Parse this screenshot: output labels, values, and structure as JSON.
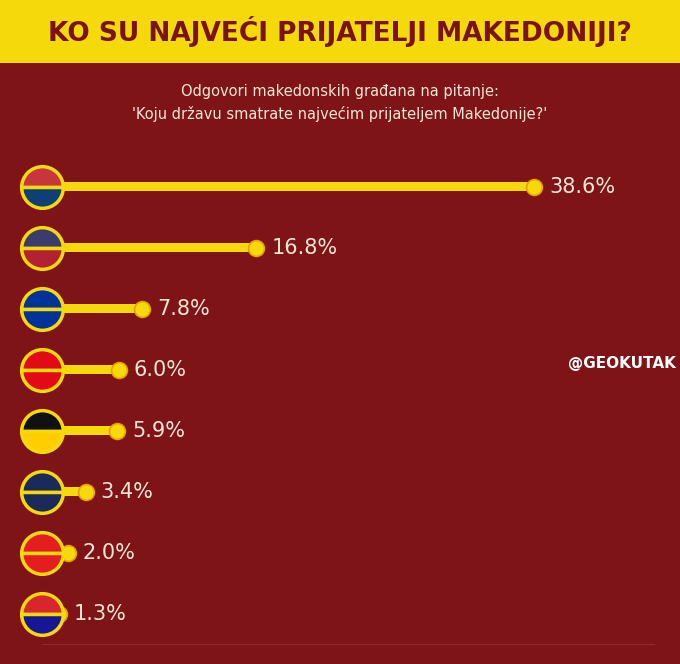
{
  "chart_data": {
    "type": "bar",
    "orientation": "horizontal",
    "title": "KO SU NAJVEĆI PRIJATELJI MAKEDONIJI?",
    "subtitle": "Odgovori makedonskih građana na pitanje:\n'Koju državu smatrate najvećim prijateljem Makedonije?'",
    "annotations": [
      "@GEOKUTAK"
    ],
    "categories": [
      null,
      null,
      null,
      null,
      null,
      null,
      null,
      null
    ],
    "values": [
      38.6,
      16.8,
      7.8,
      6.0,
      5.9,
      3.4,
      2.0,
      1.3
    ],
    "value_labels": [
      "38.6%",
      "16.8%",
      "7.8%",
      "6.0%",
      "5.9%",
      "3.4%",
      "2.0%",
      "1.3%"
    ],
    "data_labels": true,
    "color": "#f5d90a",
    "xlim": [
      0,
      48
    ],
    "xticks": [],
    "tick_labels": false,
    "grid": false
  }
}
